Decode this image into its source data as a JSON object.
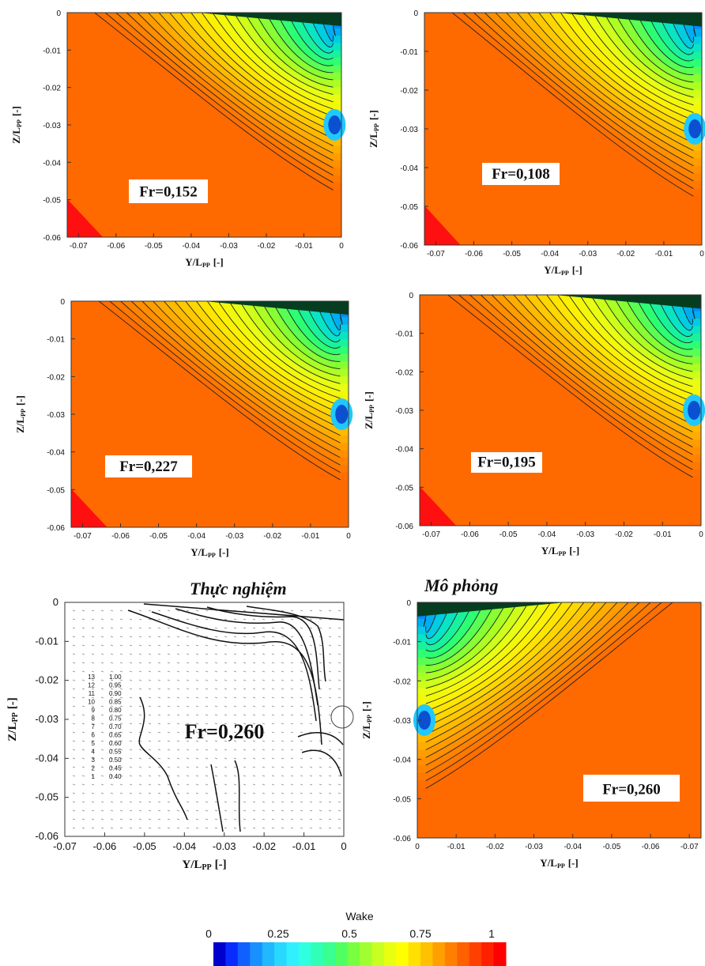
{
  "headings": {
    "experiment": "Thực nghiệm",
    "simulation": "Mô phỏng"
  },
  "colorbar": {
    "title": "Wake",
    "ticks": [
      "0",
      "0.25",
      "0.5",
      "0.75",
      "1"
    ],
    "colors": [
      "#0000cc",
      "#0a2bff",
      "#1060ff",
      "#1890ff",
      "#20b8ff",
      "#28d8ff",
      "#30f0ff",
      "#30ffe0",
      "#30ffb8",
      "#38ff90",
      "#50ff60",
      "#78ff40",
      "#a0ff30",
      "#c8ff20",
      "#e8ff10",
      "#ffff00",
      "#ffe000",
      "#ffc000",
      "#ffa000",
      "#ff8000",
      "#ff6000",
      "#ff4000",
      "#ff2000",
      "#ff0000"
    ]
  },
  "chart_data": [
    {
      "type": "contour",
      "title": "Fr=0,152",
      "xlabel": "Y/L",
      "xlabel_sub": "PP",
      "xlabel_unit": "[-]",
      "ylabel": "Z/L",
      "ylabel_sub": "PP",
      "ylabel_unit": "[-]",
      "x_ticks": [
        "-0.07",
        "-0.06",
        "-0.05",
        "-0.04",
        "-0.03",
        "-0.02",
        "-0.01",
        "0"
      ],
      "y_ticks": [
        "0",
        "-0.01",
        "-0.02",
        "-0.03",
        "-0.04",
        "-0.05",
        "-0.06"
      ],
      "xlim": [
        -0.073,
        0
      ],
      "ylim": [
        -0.06,
        0
      ],
      "mirrored": false,
      "levels": 22
    },
    {
      "type": "contour",
      "title": "Fr=0,108",
      "xlabel": "Y/L",
      "xlabel_sub": "PP",
      "xlabel_unit": "[-]",
      "ylabel": "Z/L",
      "ylabel_sub": "PP",
      "ylabel_unit": "[-]",
      "x_ticks": [
        "-0.07",
        "-0.06",
        "-0.05",
        "-0.04",
        "-0.03",
        "-0.02",
        "-0.01",
        "0"
      ],
      "y_ticks": [
        "0",
        "-0.01",
        "-0.02",
        "-0.03",
        "-0.04",
        "-0.05",
        "-0.06"
      ],
      "xlim": [
        -0.073,
        0
      ],
      "ylim": [
        -0.06,
        0
      ],
      "mirrored": false,
      "levels": 22
    },
    {
      "type": "contour",
      "title": "Fr=0,227",
      "xlabel": "Y/L",
      "xlabel_sub": "PP",
      "xlabel_unit": "[-]",
      "ylabel": "Z/L",
      "ylabel_sub": "PP",
      "ylabel_unit": "[-]",
      "x_ticks": [
        "-0.07",
        "-0.06",
        "-0.05",
        "-0.04",
        "-0.03",
        "-0.02",
        "-0.01",
        "0"
      ],
      "y_ticks": [
        "0",
        "-0.01",
        "-0.02",
        "-0.03",
        "-0.04",
        "-0.05",
        "-0.06"
      ],
      "xlim": [
        -0.073,
        0
      ],
      "ylim": [
        -0.06,
        0
      ],
      "mirrored": false,
      "levels": 22
    },
    {
      "type": "contour",
      "title": "Fr=0,195",
      "xlabel": "Y/L",
      "xlabel_sub": "PP",
      "xlabel_unit": "[-]",
      "ylabel": "Z/L",
      "ylabel_sub": "PP",
      "ylabel_unit": "[-]",
      "x_ticks": [
        "-0.07",
        "-0.06",
        "-0.05",
        "-0.04",
        "-0.03",
        "-0.02",
        "-0.01",
        "0"
      ],
      "y_ticks": [
        "0",
        "-0.01",
        "-0.02",
        "-0.03",
        "-0.04",
        "-0.05",
        "-0.06"
      ],
      "xlim": [
        -0.073,
        0
      ],
      "ylim": [
        -0.06,
        0
      ],
      "mirrored": false,
      "levels": 22
    },
    {
      "type": "contour",
      "title": "Fr=0,260",
      "subtitle": "Thực nghiệm",
      "xlabel": "Y/L",
      "xlabel_sub": "PP",
      "xlabel_unit": "[-]",
      "ylabel": "Z/L",
      "ylabel_sub": "PP",
      "ylabel_unit": "[-]",
      "x_ticks": [
        "-0.07",
        "-0.06",
        "-0.05",
        "-0.04",
        "-0.03",
        "-0.02",
        "-0.01",
        "0"
      ],
      "y_ticks": [
        "0",
        "-0.01",
        "-0.02",
        "-0.03",
        "-0.04",
        "-0.05",
        "-0.06"
      ],
      "xlim": [
        -0.07,
        0
      ],
      "ylim": [
        -0.06,
        0
      ],
      "contour_legend": [
        {
          "id": "13",
          "value": "1.00"
        },
        {
          "id": "12",
          "value": "0.95"
        },
        {
          "id": "11",
          "value": "0.90"
        },
        {
          "id": "10",
          "value": "0.85"
        },
        {
          "id": "9",
          "value": "0.80"
        },
        {
          "id": "8",
          "value": "0.75"
        },
        {
          "id": "7",
          "value": "0.70"
        },
        {
          "id": "6",
          "value": "0.65"
        },
        {
          "id": "5",
          "value": "0.60"
        },
        {
          "id": "4",
          "value": "0.55"
        },
        {
          "id": "3",
          "value": "0.50"
        },
        {
          "id": "2",
          "value": "0.45"
        },
        {
          "id": "1",
          "value": "0.40"
        }
      ]
    },
    {
      "type": "contour",
      "title": "Fr=0,260",
      "subtitle": "Mô phỏng",
      "xlabel": "Y/L",
      "xlabel_sub": "PP",
      "xlabel_unit": "[-]",
      "ylabel": "Z/L",
      "ylabel_sub": "PP",
      "ylabel_unit": "[-]",
      "x_ticks": [
        "-0.07",
        "-0.06",
        "-0.05",
        "-0.04",
        "-0.03",
        "-0.02",
        "-0.01",
        "0"
      ],
      "y_ticks": [
        "0",
        "-0.01",
        "-0.02",
        "-0.03",
        "-0.04",
        "-0.05",
        "-0.06"
      ],
      "xlim": [
        -0.073,
        0
      ],
      "ylim": [
        -0.06,
        0
      ],
      "mirrored": true,
      "levels": 22
    }
  ]
}
